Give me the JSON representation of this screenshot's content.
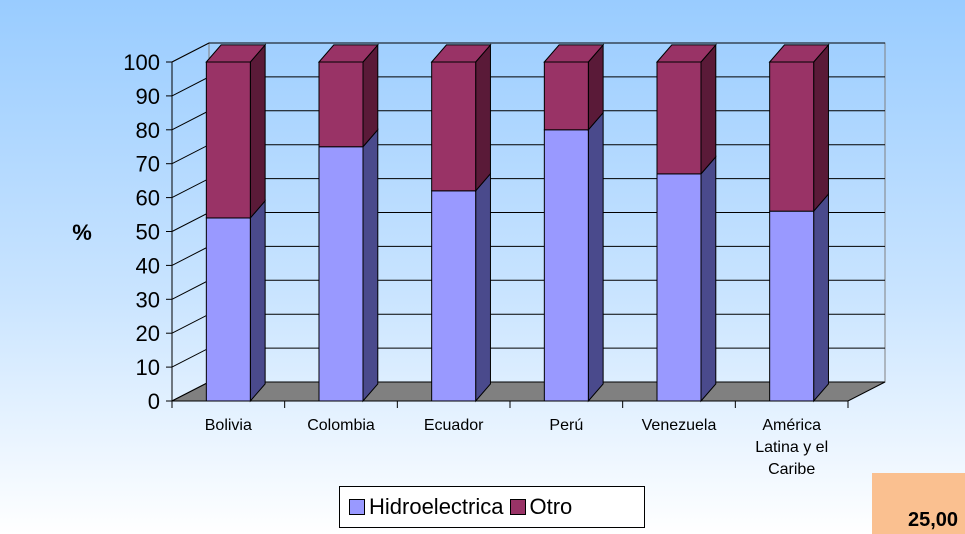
{
  "chart_data": {
    "type": "bar",
    "stacked": true,
    "three_d": true,
    "categories": [
      "Bolivia",
      "Colombia",
      "Ecuador",
      "Perú",
      "Venezuela",
      [
        "América",
        "Latina y el",
        "Caribe"
      ]
    ],
    "series": [
      {
        "name": "Hidroelectrica",
        "values": [
          54,
          75,
          62,
          80,
          67,
          56
        ]
      },
      {
        "name": "Otro",
        "values": [
          46,
          25,
          38,
          20,
          33,
          44
        ]
      }
    ],
    "ylabel": "%",
    "ylim": [
      0,
      100
    ],
    "yticks": [
      0,
      10,
      20,
      30,
      40,
      50,
      60,
      70,
      80,
      90,
      100
    ],
    "grid": true,
    "legend_position": "bottom",
    "colors": {
      "Hidroelectrica": "#9999ff",
      "Hidroelectrica_side": "#4a4a8c",
      "Otro": "#993366",
      "Otro_side": "#5a1a38",
      "floor": "#808080",
      "background_top": "#ffffff",
      "background_bottom": "#99ccff"
    }
  },
  "legend": {
    "items": [
      {
        "label": "Hidroelectrica",
        "color": "#9999ff"
      },
      {
        "label": "Otro",
        "color": "#993366"
      }
    ]
  },
  "corner_value": "25,00"
}
